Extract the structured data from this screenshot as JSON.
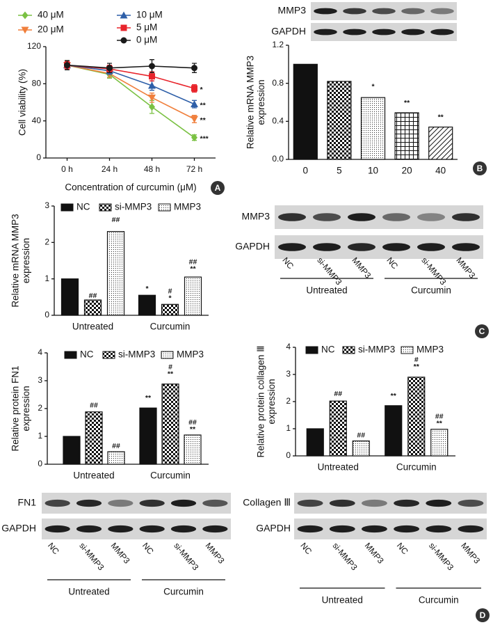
{
  "chart_data": [
    {
      "type": "line",
      "panel_label": "A",
      "y_label": "Cell viability (%)",
      "x_label": "Concentration of curcumin (μM)",
      "categories": [
        "0 h",
        "24 h",
        "48 h",
        "72 h"
      ],
      "ylim": [
        0,
        120
      ],
      "yticks": [
        0,
        40,
        80,
        120
      ],
      "series": [
        {
          "name": "40 μM",
          "color": "#7ac143",
          "marker": "diamond",
          "values": [
            100,
            90,
            55,
            22
          ],
          "errors": [
            5,
            4,
            7,
            3
          ],
          "annotations": [
            null,
            null,
            null,
            "***"
          ]
        },
        {
          "name": "20 μM",
          "color": "#f07f3c",
          "marker": "triangle-down",
          "values": [
            100,
            91,
            65,
            42
          ],
          "errors": [
            5,
            4,
            5,
            4
          ],
          "annotations": [
            null,
            null,
            null,
            "**"
          ]
        },
        {
          "name": "10 μM",
          "color": "#2e5fa8",
          "marker": "triangle-up",
          "values": [
            100,
            94,
            78,
            58
          ],
          "errors": [
            4,
            4,
            5,
            4
          ],
          "annotations": [
            null,
            null,
            null,
            "**"
          ]
        },
        {
          "name": "5 μM",
          "color": "#e8242b",
          "marker": "square",
          "values": [
            100,
            96,
            88,
            75
          ],
          "errors": [
            4,
            4,
            5,
            4
          ],
          "annotations": [
            null,
            null,
            null,
            "*"
          ]
        },
        {
          "name": "0 μM",
          "color": "#1a1a1a",
          "marker": "circle",
          "values": [
            100,
            97,
            99,
            97
          ],
          "errors": [
            5,
            5,
            7,
            5
          ],
          "annotations": [
            null,
            null,
            null,
            null
          ]
        }
      ]
    },
    {
      "type": "bar",
      "panel_label": "B",
      "y_label": "Relative mRNA MMP3 expression",
      "categories": [
        "0",
        "5",
        "10",
        "20",
        "40"
      ],
      "values": [
        1,
        0.82,
        0.65,
        0.49,
        0.34
      ],
      "errors": [
        null,
        0.08,
        0.06,
        0.05,
        0.05
      ],
      "annotations": [
        null,
        null,
        "*",
        "**",
        "**"
      ],
      "color": "#111111",
      "patterns": [
        "solid",
        "checker",
        "dots",
        "grid",
        "hatch"
      ],
      "ylim": [
        0,
        1.2
      ],
      "yticks": [
        {
          "value": 0,
          "label": "0.0"
        },
        0.4,
        0.8,
        1.2
      ]
    },
    {
      "type": "bar",
      "panel_label": "C",
      "y_label": "Relative mRNA MMP3 expression",
      "categories": [
        "Untreated",
        "Curcumin"
      ],
      "ylim": [
        0,
        3
      ],
      "yticks": [
        0,
        1,
        2,
        3
      ],
      "series": [
        {
          "name": "NC",
          "color": "#111111",
          "pattern": "solid",
          "values": [
            1,
            0.55
          ],
          "errors": [
            null,
            0.06
          ],
          "annotations": [
            [],
            [
              "*"
            ]
          ]
        },
        {
          "name": "si-MMP3",
          "color": "#111111",
          "pattern": "checker",
          "values": [
            0.42,
            0.3
          ],
          "errors": [
            null,
            0.05
          ],
          "annotations": [
            [
              "##"
            ],
            [
              "#",
              "*"
            ]
          ]
        },
        {
          "name": "MMP3",
          "color": "#111111",
          "pattern": "dots",
          "values": [
            2.3,
            1.05
          ],
          "errors": [
            0.2,
            0.1
          ],
          "annotations": [
            [
              "##"
            ],
            [
              "##",
              "**"
            ]
          ]
        }
      ]
    },
    {
      "type": "bar",
      "y_label": "Relative protein FN1 expression",
      "categories": [
        "Untreated",
        "Curcumin"
      ],
      "ylim": [
        0,
        4
      ],
      "yticks": [
        0,
        1,
        2,
        3,
        4
      ],
      "series": [
        {
          "name": "NC",
          "color": "#111111",
          "pattern": "solid",
          "values": [
            1,
            2.02
          ],
          "errors": [
            null,
            0.2
          ],
          "annotations": [
            [],
            [
              "**"
            ]
          ]
        },
        {
          "name": "si-MMP3",
          "color": "#111111",
          "pattern": "checker",
          "values": [
            1.88,
            2.88
          ],
          "errors": [
            0.08,
            0.2
          ],
          "annotations": [
            [
              "##"
            ],
            [
              "#",
              "**"
            ]
          ]
        },
        {
          "name": "MMP3",
          "color": "#111111",
          "pattern": "dots",
          "values": [
            0.45,
            1.05
          ],
          "errors": [
            0.04,
            0.05
          ],
          "annotations": [
            [
              "##"
            ],
            [
              "##",
              "**"
            ]
          ]
        }
      ]
    },
    {
      "type": "bar",
      "panel_label": "D",
      "y_label": "Relative protein collagen Ⅲ expression",
      "categories": [
        "Untreated",
        "Curcumin"
      ],
      "ylim": [
        0,
        4
      ],
      "yticks": [
        0,
        1,
        2,
        3,
        4
      ],
      "series": [
        {
          "name": "NC",
          "color": "#111111",
          "pattern": "solid",
          "values": [
            1,
            1.85
          ],
          "errors": [
            null,
            0.2
          ],
          "annotations": [
            [],
            [
              "**"
            ]
          ]
        },
        {
          "name": "si-MMP3",
          "color": "#111111",
          "pattern": "checker",
          "values": [
            2.02,
            2.9
          ],
          "errors": [
            0.1,
            0.22
          ],
          "annotations": [
            [
              "##"
            ],
            [
              "#",
              "**"
            ]
          ]
        },
        {
          "name": "MMP3",
          "color": "#111111",
          "pattern": "dots",
          "values": [
            0.55,
            0.98
          ],
          "errors": [
            0.05,
            0.05
          ],
          "annotations": [
            [
              "##"
            ],
            [
              "##",
              "**"
            ]
          ]
        }
      ]
    }
  ],
  "blots": [
    {
      "rows": [
        "MMP3",
        "GAPDH"
      ]
    },
    {
      "rows": [
        "MMP3",
        "GAPDH"
      ],
      "lanes": [
        "NC",
        "si-MMP3",
        "MMP3",
        "NC",
        "si-MMP3",
        "MMP3"
      ],
      "groups": [
        "Untreated",
        "Curcumin"
      ]
    },
    {
      "rows": [
        "FN1",
        "GAPDH"
      ],
      "lanes": [
        "NC",
        "si-MMP3",
        "MMP3",
        "NC",
        "si-MMP3",
        "MMP3"
      ],
      "groups": [
        "Untreated",
        "Curcumin"
      ]
    },
    {
      "rows": [
        "Collagen Ⅲ",
        "GAPDH"
      ],
      "lanes": [
        "NC",
        "si-MMP3",
        "MMP3",
        "NC",
        "si-MMP3",
        "MMP3"
      ],
      "groups": [
        "Untreated",
        "Curcumin"
      ]
    }
  ]
}
